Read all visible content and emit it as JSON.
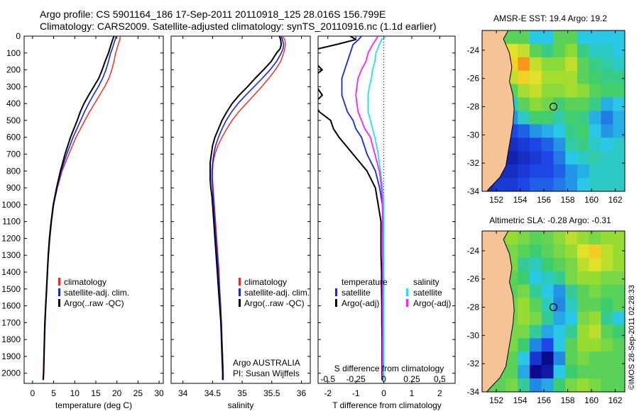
{
  "header": {
    "line1": "Argo profile: CS 5901164_186 17-Sep-2011 20110918_125 28.016S 156.799E",
    "line2": "Climatology: CARS2009. Satellite-adjusted climatology: synTS_20110916.nc (1.1d earlier)"
  },
  "side_label": "©IMOS 28-Sep-2011 02:28:33",
  "colors": {
    "climatology": "#ff2020",
    "satellite": "#1428e6",
    "argo": "#000000",
    "sal_satellite": "#20e6e6",
    "sal_argo": "#ff20ff",
    "land": "#f5c396"
  },
  "chart_data": [
    {
      "type": "line",
      "id": "temperature",
      "title": "",
      "xlabel": "temperature (deg C)",
      "ylabel": "",
      "xlim": [
        -2,
        31
      ],
      "ylim": [
        2060,
        0
      ],
      "xticks": [
        0,
        5,
        10,
        15,
        20,
        25,
        30
      ],
      "yticks": [
        0,
        100,
        200,
        300,
        400,
        500,
        600,
        700,
        800,
        900,
        1000,
        1100,
        1200,
        1300,
        1400,
        1500,
        1600,
        1700,
        1800,
        1900,
        2000
      ],
      "legend": [
        "climatology",
        "satellite-adj. clim.",
        "Argo(..raw -QC)"
      ],
      "depth": [
        0,
        20,
        50,
        75,
        100,
        150,
        200,
        250,
        300,
        350,
        400,
        450,
        500,
        600,
        700,
        800,
        900,
        1000,
        1100,
        1200,
        1300,
        1400,
        1500,
        1600,
        1700,
        1800,
        1900,
        2000,
        2040
      ],
      "series": [
        {
          "name": "climatology",
          "values": [
            20.8,
            20.7,
            20.3,
            20.0,
            19.7,
            19.3,
            18.8,
            18.1,
            17.1,
            15.9,
            14.7,
            13.5,
            12.4,
            10.3,
            8.6,
            7.0,
            5.9,
            5.0,
            4.5,
            4.1,
            3.8,
            3.6,
            3.4,
            3.2,
            3.0,
            2.9,
            2.8,
            2.7,
            2.6
          ]
        },
        {
          "name": "satellite-adj. clim.",
          "values": [
            19.8,
            19.6,
            19.2,
            18.9,
            18.5,
            18.0,
            17.4,
            16.6,
            15.6,
            14.4,
            13.3,
            12.3,
            11.4,
            9.6,
            8.1,
            6.8,
            5.8,
            5.0,
            4.5,
            4.1,
            3.8,
            3.5,
            3.3,
            3.1,
            3.0,
            2.8,
            2.7,
            2.6,
            2.5
          ]
        },
        {
          "name": "Argo(..raw -QC)",
          "values": [
            19.3,
            19.0,
            18.6,
            18.3,
            18.0,
            17.2,
            16.5,
            15.7,
            14.5,
            13.3,
            12.2,
            11.3,
            10.6,
            9.0,
            7.7,
            6.6,
            5.7,
            4.9,
            4.4,
            4.0,
            3.7,
            3.5,
            3.3,
            3.1,
            2.9,
            2.8,
            2.7,
            2.6,
            2.5
          ]
        }
      ]
    },
    {
      "type": "line",
      "id": "salinity",
      "title": "",
      "xlabel": "salinity",
      "xlim": [
        33.8,
        36.15
      ],
      "ylim": [
        2060,
        0
      ],
      "xticks": [
        34,
        34.5,
        35,
        35.5,
        36
      ],
      "legend": [
        "climatology",
        "satellite-adj. clim.",
        "Argo(..raw -QC)"
      ],
      "annotations": [
        "Argo AUSTRALIA",
        "PI: Susan Wijffels"
      ],
      "depth": [
        0,
        20,
        50,
        75,
        100,
        150,
        200,
        250,
        300,
        350,
        400,
        450,
        500,
        550,
        600,
        650,
        700,
        750,
        800,
        850,
        900,
        950,
        1000,
        1100,
        1200,
        1300,
        1400,
        1500,
        1600,
        1700,
        1800,
        1900,
        2000,
        2040
      ],
      "series": [
        {
          "name": "climatology",
          "values": [
            35.68,
            35.72,
            35.73,
            35.72,
            35.7,
            35.65,
            35.56,
            35.45,
            35.33,
            35.2,
            35.07,
            34.94,
            34.83,
            34.74,
            34.66,
            34.59,
            34.54,
            34.51,
            34.5,
            34.5,
            34.51,
            34.52,
            34.53,
            34.55,
            34.57,
            34.59,
            34.61,
            34.62,
            34.64,
            34.65,
            34.66,
            34.67,
            34.68,
            34.68
          ]
        },
        {
          "name": "satellite-adj. clim.",
          "values": [
            35.66,
            35.68,
            35.7,
            35.69,
            35.66,
            35.58,
            35.47,
            35.34,
            35.2,
            35.06,
            34.93,
            34.82,
            34.73,
            34.66,
            34.6,
            34.55,
            34.52,
            34.5,
            34.49,
            34.49,
            34.5,
            34.51,
            34.52,
            34.54,
            34.56,
            34.58,
            34.6,
            34.62,
            34.63,
            34.65,
            34.66,
            34.67,
            34.68,
            34.68
          ]
        },
        {
          "name": "Argo(..raw -QC)",
          "values": [
            35.63,
            35.65,
            35.66,
            35.64,
            35.58,
            35.49,
            35.36,
            35.22,
            35.09,
            34.95,
            34.83,
            34.74,
            34.66,
            34.6,
            34.54,
            34.5,
            34.48,
            34.46,
            34.46,
            34.46,
            34.47,
            34.49,
            34.5,
            34.52,
            34.54,
            34.56,
            34.58,
            34.6,
            34.62,
            34.64,
            34.65,
            34.66,
            34.67,
            34.67
          ]
        }
      ]
    },
    {
      "type": "line",
      "id": "differences",
      "title": "",
      "xlabel": "T difference from climatology",
      "xlabel_top": "S difference from climatology",
      "xlim": [
        -2.35,
        2.55
      ],
      "ylim": [
        2060,
        0
      ],
      "xticks": [
        -2,
        -1,
        0,
        1,
        2
      ],
      "xticks_s": [
        -0.5,
        -0.25,
        0,
        0.25,
        0.5
      ],
      "legend_headers": [
        "temperature",
        "salinity"
      ],
      "legend": [
        "satellite",
        "Argo(-adj)",
        "satellite",
        "Argo(-adj)"
      ],
      "depth": [
        0,
        20,
        50,
        100,
        150,
        200,
        250,
        300,
        350,
        400,
        450,
        500,
        550,
        600,
        700,
        800,
        900,
        1000,
        1100,
        1200,
        1300,
        1400,
        1500,
        1600,
        1700,
        1800,
        1900,
        2000,
        2040
      ],
      "series": [
        {
          "name": "temperature satellite",
          "values": [
            -0.8,
            -0.9,
            -1.1,
            -1.2,
            -1.3,
            -1.4,
            -1.5,
            -1.5,
            -1.5,
            -1.4,
            -1.3,
            -1.1,
            -1.0,
            -0.8,
            -0.6,
            -0.3,
            -0.15,
            -0.05,
            -0.04,
            -0.03,
            -0.03,
            -0.04,
            -0.05,
            -0.05,
            -0.05,
            -0.05,
            -0.05,
            -0.05,
            -0.05
          ]
        },
        {
          "name": "temperature Argo(-adj)",
          "values": [
            -1.2,
            -1.0,
            -1.7,
            -3.0,
            -2.5,
            -2.2,
            -2.6,
            -2.4,
            -2.2,
            -2.5,
            -2.3,
            -1.9,
            -1.8,
            -1.6,
            -1.1,
            -0.6,
            -0.3,
            -0.2,
            -0.1,
            -0.1,
            -0.1,
            -0.08,
            -0.08,
            -0.07,
            -0.07,
            -0.06,
            -0.06,
            -0.06,
            -0.06
          ]
        },
        {
          "name": "salinity satellite",
          "values": [
            0.02,
            -0.02,
            -0.04,
            -0.07,
            -0.08,
            -0.1,
            -0.11,
            -0.13,
            -0.14,
            -0.14,
            -0.14,
            -0.12,
            -0.1,
            -0.08,
            -0.05,
            -0.03,
            -0.01,
            0.0,
            0.0,
            0.0,
            0.0,
            0.0,
            0.0,
            0.0,
            0.0,
            0.0,
            0.0,
            0.0,
            0.0
          ]
        },
        {
          "name": "salinity Argo(-adj)",
          "values": [
            -0.05,
            -0.07,
            -0.1,
            -0.14,
            -0.16,
            -0.2,
            -0.23,
            -0.24,
            -0.25,
            -0.24,
            -0.23,
            -0.2,
            -0.17,
            -0.12,
            -0.08,
            -0.04,
            -0.02,
            -0.01,
            -0.01,
            -0.01,
            -0.01,
            -0.01,
            -0.01,
            -0.01,
            -0.01,
            -0.01,
            -0.01,
            -0.01,
            -0.01
          ]
        }
      ]
    },
    {
      "type": "heatmap",
      "id": "sst_map",
      "title": "AMSR-E SST: 19.4 Argo: 19.2",
      "xlim": [
        150.8,
        162.8
      ],
      "ylim": [
        -34,
        -22.6
      ],
      "xticks": [
        152,
        154,
        156,
        158,
        160,
        162
      ],
      "yticks": [
        -24,
        -26,
        -28,
        -30,
        -32,
        -34
      ],
      "argo_position": {
        "lon": 156.8,
        "lat": -28.0
      },
      "coast": [
        [
          153.0,
          -22.6
        ],
        [
          152.6,
          -23.2
        ],
        [
          153.1,
          -24.2
        ],
        [
          153.3,
          -25.2
        ],
        [
          153.1,
          -26.2
        ],
        [
          153.4,
          -27.2
        ],
        [
          153.5,
          -28.2
        ],
        [
          153.4,
          -29.2
        ],
        [
          153.2,
          -30.2
        ],
        [
          153.0,
          -31.2
        ],
        [
          152.8,
          -32.2
        ],
        [
          152.3,
          -33.0
        ],
        [
          151.4,
          -33.8
        ],
        [
          151.2,
          -34.0
        ]
      ],
      "field": [
        [
          18,
          19,
          19,
          19,
          18.5,
          18.5,
          19,
          19,
          18.5,
          18.5,
          18.5,
          18.5
        ],
        [
          18,
          18.8,
          19.5,
          19.4,
          19.0,
          18.8,
          19,
          19.2,
          18.8,
          18.6,
          18.6,
          18.5
        ],
        [
          18,
          18,
          19.6,
          19.8,
          19.4,
          19.2,
          19.2,
          19.4,
          19.0,
          18.8,
          18.7,
          18.6
        ],
        [
          18,
          18,
          19.4,
          19.6,
          19.5,
          19.3,
          19.3,
          19.3,
          19.0,
          18.9,
          18.8,
          18.8
        ],
        [
          18,
          18,
          19.0,
          19.3,
          19.4,
          19.2,
          19.2,
          19.3,
          19.2,
          19.0,
          18.9,
          18.9
        ],
        [
          18,
          18,
          18.6,
          19.0,
          19.2,
          19.1,
          18.9,
          19.0,
          19.0,
          18.8,
          18.4,
          18.5
        ],
        [
          18,
          18,
          18.3,
          18.6,
          18.9,
          18.9,
          18.7,
          18.9,
          18.8,
          18.4,
          18.2,
          18.4
        ],
        [
          18,
          18,
          18.0,
          18.1,
          18.3,
          18.4,
          18.5,
          18.8,
          18.9,
          18.5,
          18.3,
          18.4
        ],
        [
          18,
          18,
          17.8,
          17.9,
          18.0,
          18.1,
          18.3,
          18.7,
          18.8,
          18.6,
          18.5,
          18.6
        ],
        [
          18,
          17.7,
          17.7,
          17.8,
          17.9,
          18.0,
          18.2,
          18.5,
          18.6,
          18.7,
          18.6,
          18.6
        ],
        [
          17.8,
          17.8,
          17.8,
          17.9,
          18.0,
          18.0,
          18.1,
          18.3,
          18.4,
          18.6,
          18.6,
          18.6
        ],
        [
          17.8,
          17.9,
          17.9,
          18.0,
          18.1,
          18.1,
          18.2,
          18.3,
          18.5,
          18.6,
          18.6,
          18.6
        ]
      ],
      "value_range": [
        17.5,
        20.0
      ]
    },
    {
      "type": "heatmap",
      "id": "sla_map",
      "title": "Altimetric SLA: -0.28 Argo: -0.31",
      "xlim": [
        150.8,
        162.8
      ],
      "ylim": [
        -34,
        -22.6
      ],
      "xticks": [
        152,
        154,
        156,
        158,
        160,
        162
      ],
      "yticks": [
        -24,
        -26,
        -28,
        -30,
        -32,
        -34
      ],
      "argo_position": {
        "lon": 156.8,
        "lat": -28.0
      },
      "coast": [
        [
          153.0,
          -22.6
        ],
        [
          152.6,
          -23.2
        ],
        [
          153.1,
          -24.2
        ],
        [
          153.3,
          -25.2
        ],
        [
          153.1,
          -26.2
        ],
        [
          153.4,
          -27.2
        ],
        [
          153.5,
          -28.2
        ],
        [
          153.4,
          -29.2
        ],
        [
          153.2,
          -30.2
        ],
        [
          153.0,
          -31.2
        ],
        [
          152.8,
          -32.2
        ],
        [
          152.3,
          -33.0
        ],
        [
          151.4,
          -33.8
        ],
        [
          151.2,
          -34.0
        ]
      ],
      "field": [
        [
          0,
          0.05,
          0.1,
          0.05,
          0.0,
          0.02,
          0.08,
          0.15,
          0.1,
          0.05,
          0.1,
          0.1
        ],
        [
          0,
          0.05,
          0.05,
          0.0,
          -0.05,
          0.0,
          0.05,
          0.1,
          0.2,
          0.25,
          0.15,
          0.1
        ],
        [
          0,
          0.0,
          0.05,
          -0.1,
          -0.15,
          -0.05,
          0.0,
          0.05,
          0.15,
          0.2,
          0.15,
          0.1
        ],
        [
          0,
          0.0,
          0.0,
          -0.05,
          -0.2,
          -0.15,
          -0.1,
          0.05,
          0.1,
          0.1,
          0.05,
          0.05
        ],
        [
          0,
          0.0,
          0.0,
          0.05,
          -0.1,
          -0.2,
          -0.28,
          -0.1,
          0.0,
          0.05,
          0.0,
          0.0
        ],
        [
          0,
          0.0,
          0.05,
          0.1,
          0.0,
          -0.15,
          -0.3,
          -0.15,
          0.0,
          0.0,
          -0.05,
          0.0
        ],
        [
          0,
          0.0,
          0.05,
          0.1,
          0.05,
          -0.1,
          -0.25,
          -0.2,
          0.05,
          0.1,
          -0.1,
          -0.2
        ],
        [
          0,
          0.0,
          0.05,
          0.05,
          -0.1,
          -0.25,
          -0.2,
          -0.1,
          0.1,
          0.15,
          0.0,
          -0.05
        ],
        [
          0,
          0.0,
          0.05,
          -0.05,
          -0.3,
          -0.4,
          -0.2,
          0.0,
          0.1,
          0.1,
          0.05,
          0.0
        ],
        [
          0,
          0.0,
          0.0,
          -0.2,
          -0.45,
          -0.6,
          -0.3,
          0.0,
          0.05,
          0.0,
          0.0,
          0.0
        ],
        [
          0,
          0.0,
          0.0,
          -0.25,
          -0.7,
          -0.55,
          -0.2,
          -0.05,
          0.0,
          0.0,
          0.0,
          0.0
        ],
        [
          0,
          0.0,
          0.05,
          -0.1,
          -0.3,
          -0.25,
          -0.05,
          0.05,
          0.1,
          0.05,
          0.0,
          0.0
        ]
      ],
      "value_range": [
        -0.6,
        0.4
      ]
    }
  ]
}
